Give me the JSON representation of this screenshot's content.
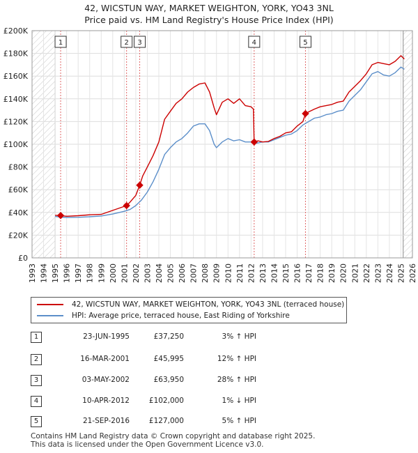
{
  "title_line1": "42, WICSTUN WAY, MARKET WEIGHTON, YORK, YO43 3NL",
  "title_line2": "Price paid vs. HM Land Registry's House Price Index (HPI)",
  "chart_data": {
    "type": "line",
    "xlim": [
      1993,
      2026
    ],
    "ylim": [
      0,
      200000
    ],
    "x_ticks": [
      "1993",
      "1994",
      "1995",
      "1996",
      "1997",
      "1998",
      "1999",
      "2000",
      "2001",
      "2002",
      "2003",
      "2004",
      "2005",
      "2006",
      "2007",
      "2008",
      "2009",
      "2010",
      "2011",
      "2012",
      "2013",
      "2014",
      "2015",
      "2016",
      "2017",
      "2018",
      "2019",
      "2020",
      "2021",
      "2022",
      "2023",
      "2024",
      "2025",
      "2026"
    ],
    "y_ticks": [
      {
        "value": 0,
        "label": "£0"
      },
      {
        "value": 20000,
        "label": "£20K"
      },
      {
        "value": 40000,
        "label": "£40K"
      },
      {
        "value": 60000,
        "label": "£60K"
      },
      {
        "value": 80000,
        "label": "£80K"
      },
      {
        "value": 100000,
        "label": "£100K"
      },
      {
        "value": 120000,
        "label": "£120K"
      },
      {
        "value": 140000,
        "label": "£140K"
      },
      {
        "value": 160000,
        "label": "£160K"
      },
      {
        "value": 180000,
        "label": "£180K"
      },
      {
        "value": 200000,
        "label": "£200K"
      }
    ],
    "hatched_ranges": [
      [
        1993,
        1995.0
      ],
      [
        2025.2,
        2026
      ]
    ],
    "series": [
      {
        "name": "42, WICSTUN WAY, MARKET WEIGHTON, YORK, YO43 3NL (terraced house)",
        "color": "#cc0000",
        "points": [
          [
            1995.0,
            37500
          ],
          [
            1995.48,
            37250
          ],
          [
            1996,
            36600
          ],
          [
            1997,
            37100
          ],
          [
            1998,
            37900
          ],
          [
            1999,
            38300
          ],
          [
            2000,
            41800
          ],
          [
            2001.2,
            45995
          ],
          [
            2001.5,
            49000
          ],
          [
            2002.0,
            55000
          ],
          [
            2002.34,
            63950
          ],
          [
            2002.6,
            72000
          ],
          [
            2003.0,
            80000
          ],
          [
            2003.5,
            90000
          ],
          [
            2004.0,
            102000
          ],
          [
            2004.5,
            122000
          ],
          [
            2005.0,
            129000
          ],
          [
            2005.5,
            136000
          ],
          [
            2006.0,
            140000
          ],
          [
            2006.5,
            146000
          ],
          [
            2007.0,
            150000
          ],
          [
            2007.5,
            153000
          ],
          [
            2008.0,
            154000
          ],
          [
            2008.4,
            146000
          ],
          [
            2008.8,
            132000
          ],
          [
            2009.0,
            126000
          ],
          [
            2009.5,
            137000
          ],
          [
            2010.0,
            140000
          ],
          [
            2010.5,
            136000
          ],
          [
            2011.0,
            140000
          ],
          [
            2011.5,
            134000
          ],
          [
            2012.0,
            133000
          ],
          [
            2012.2,
            131000
          ],
          [
            2012.27,
            102000
          ],
          [
            2012.6,
            103000
          ],
          [
            2013.0,
            102000
          ],
          [
            2013.5,
            102500
          ],
          [
            2014.0,
            105000
          ],
          [
            2014.5,
            107000
          ],
          [
            2015.0,
            110000
          ],
          [
            2015.5,
            111000
          ],
          [
            2016.0,
            116000
          ],
          [
            2016.5,
            120000
          ],
          [
            2016.72,
            127000
          ],
          [
            2017.0,
            128500
          ],
          [
            2017.5,
            131000
          ],
          [
            2018.0,
            133000
          ],
          [
            2018.5,
            134000
          ],
          [
            2019.0,
            135000
          ],
          [
            2019.5,
            137000
          ],
          [
            2020.0,
            138000
          ],
          [
            2020.5,
            146000
          ],
          [
            2021.0,
            151000
          ],
          [
            2021.5,
            156000
          ],
          [
            2022.0,
            162000
          ],
          [
            2022.5,
            170000
          ],
          [
            2023.0,
            172000
          ],
          [
            2023.5,
            171000
          ],
          [
            2024.0,
            170000
          ],
          [
            2024.5,
            173000
          ],
          [
            2025.0,
            178000
          ],
          [
            2025.3,
            175000
          ]
        ]
      },
      {
        "name": "HPI: Average price, terraced house, East Riding of Yorkshire",
        "color": "#5b8ec9",
        "points": [
          [
            1995.0,
            36500
          ],
          [
            1995.5,
            35800
          ],
          [
            1996,
            35500
          ],
          [
            1997,
            35700
          ],
          [
            1998,
            36200
          ],
          [
            1999,
            36900
          ],
          [
            2000,
            38600
          ],
          [
            2001,
            41000
          ],
          [
            2001.5,
            42600
          ],
          [
            2002.0,
            46000
          ],
          [
            2002.5,
            51000
          ],
          [
            2003.0,
            58000
          ],
          [
            2003.5,
            67000
          ],
          [
            2004.0,
            78000
          ],
          [
            2004.5,
            91000
          ],
          [
            2005.0,
            97000
          ],
          [
            2005.5,
            102000
          ],
          [
            2006.0,
            105000
          ],
          [
            2006.5,
            110000
          ],
          [
            2007.0,
            116000
          ],
          [
            2007.5,
            118000
          ],
          [
            2008.0,
            118000
          ],
          [
            2008.4,
            112000
          ],
          [
            2008.8,
            100000
          ],
          [
            2009.0,
            97000
          ],
          [
            2009.5,
            102000
          ],
          [
            2010.0,
            105000
          ],
          [
            2010.5,
            103000
          ],
          [
            2011.0,
            104000
          ],
          [
            2011.5,
            102000
          ],
          [
            2012.0,
            102000
          ],
          [
            2012.5,
            101000
          ],
          [
            2013.0,
            102000
          ],
          [
            2013.5,
            102000
          ],
          [
            2014.0,
            104000
          ],
          [
            2014.5,
            106000
          ],
          [
            2015.0,
            108000
          ],
          [
            2015.5,
            109000
          ],
          [
            2016.0,
            112000
          ],
          [
            2016.5,
            117000
          ],
          [
            2017.0,
            120000
          ],
          [
            2017.5,
            123000
          ],
          [
            2018.0,
            124000
          ],
          [
            2018.5,
            126000
          ],
          [
            2019.0,
            127000
          ],
          [
            2019.5,
            129000
          ],
          [
            2020.0,
            130000
          ],
          [
            2020.5,
            138000
          ],
          [
            2021.0,
            143000
          ],
          [
            2021.5,
            148000
          ],
          [
            2022.0,
            155000
          ],
          [
            2022.5,
            162000
          ],
          [
            2023.0,
            164000
          ],
          [
            2023.5,
            161000
          ],
          [
            2024.0,
            160000
          ],
          [
            2024.5,
            163000
          ],
          [
            2025.0,
            168000
          ],
          [
            2025.3,
            166000
          ]
        ]
      }
    ],
    "sales": [
      {
        "id": "1",
        "x": 1995.48,
        "y": 37250
      },
      {
        "id": "2",
        "x": 2001.2,
        "y": 45995
      },
      {
        "id": "3",
        "x": 2002.34,
        "y": 63950
      },
      {
        "id": "4",
        "x": 2012.27,
        "y": 102000
      },
      {
        "id": "5",
        "x": 2016.72,
        "y": 127000
      }
    ]
  },
  "legend": {
    "series1": "42, WICSTUN WAY, MARKET WEIGHTON, YORK, YO43 3NL (terraced house)",
    "series2": "HPI: Average price, terraced house, East Riding of Yorkshire"
  },
  "transactions": [
    {
      "id": "1",
      "date": "23-JUN-1995",
      "price": "£37,250",
      "hpi": "3% ↑ HPI"
    },
    {
      "id": "2",
      "date": "16-MAR-2001",
      "price": "£45,995",
      "hpi": "12% ↑ HPI"
    },
    {
      "id": "3",
      "date": "03-MAY-2002",
      "price": "£63,950",
      "hpi": "28% ↑ HPI"
    },
    {
      "id": "4",
      "date": "10-APR-2012",
      "price": "£102,000",
      "hpi": "1% ↓ HPI"
    },
    {
      "id": "5",
      "date": "21-SEP-2016",
      "price": "£127,000",
      "hpi": "5% ↑ HPI"
    }
  ],
  "footer_line1": "Contains HM Land Registry data © Crown copyright and database right 2025.",
  "footer_line2": "This data is licensed under the Open Government Licence v3.0."
}
